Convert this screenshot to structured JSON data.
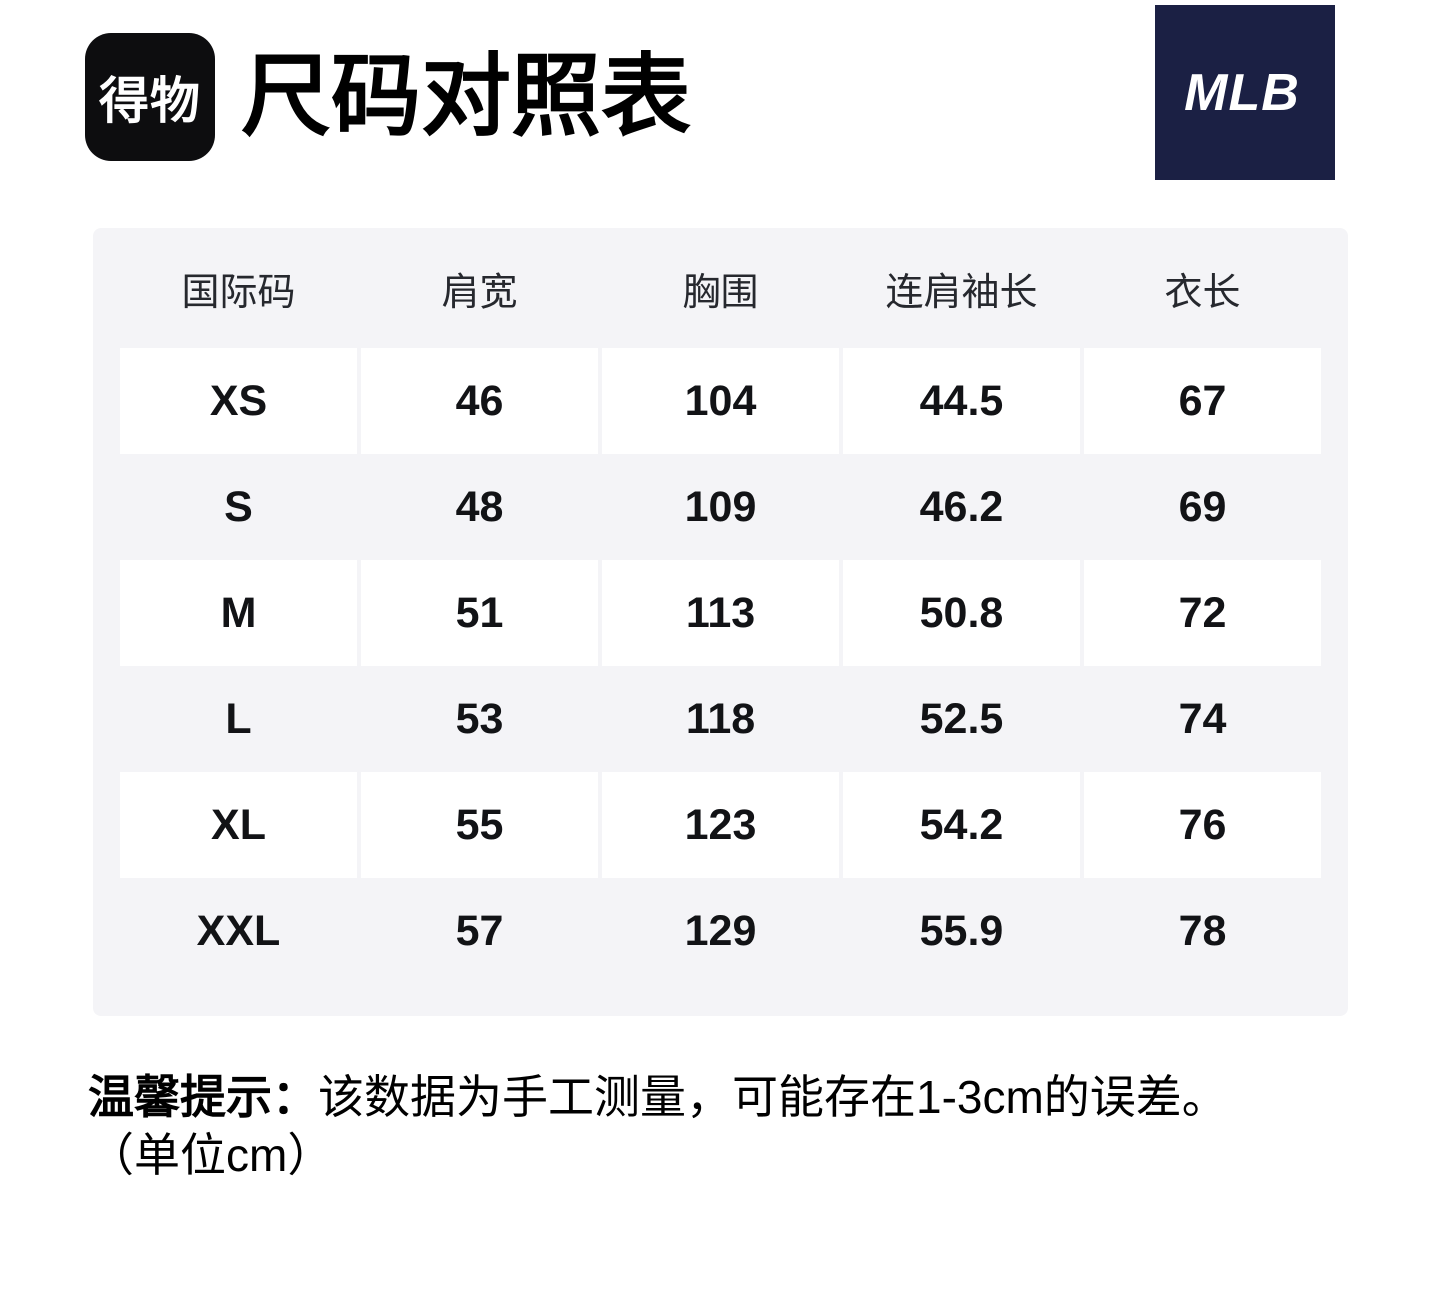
{
  "header": {
    "logo_text": "得物",
    "title": "尺码对照表",
    "brand": "MLB"
  },
  "colors": {
    "brand_navy": "#1b2044",
    "logo_black": "#0d0d0f",
    "table_bg": "#f4f4f7",
    "row_white": "#ffffff",
    "text_black": "#121316"
  },
  "table": {
    "columns": [
      "国际码",
      "肩宽",
      "胸围",
      "连肩袖长",
      "衣长"
    ],
    "rows": [
      {
        "size": "XS",
        "values": [
          "46",
          "104",
          "44.5",
          "67"
        ]
      },
      {
        "size": "S",
        "values": [
          "48",
          "109",
          "46.2",
          "69"
        ]
      },
      {
        "size": "M",
        "values": [
          "51",
          "113",
          "50.8",
          "72"
        ]
      },
      {
        "size": "L",
        "values": [
          "53",
          "118",
          "52.5",
          "74"
        ]
      },
      {
        "size": "XL",
        "values": [
          "55",
          "123",
          "54.2",
          "76"
        ]
      },
      {
        "size": "XXL",
        "values": [
          "57",
          "129",
          "55.9",
          "78"
        ]
      }
    ]
  },
  "note": {
    "label": "温馨提示：",
    "text": "该数据为手工测量，可能存在1-3cm的误差。",
    "unit": "（单位cm）"
  }
}
